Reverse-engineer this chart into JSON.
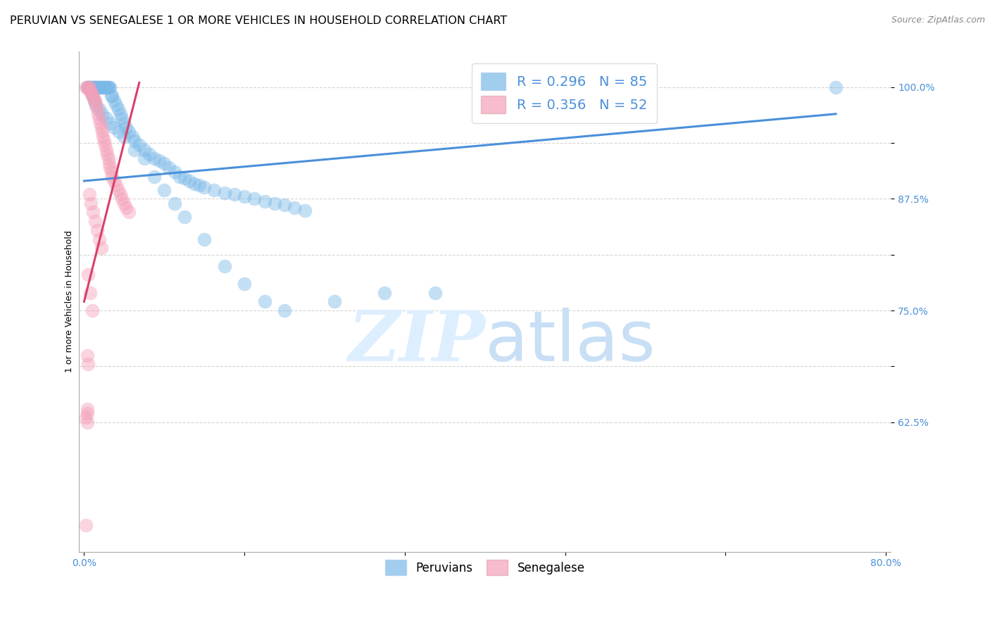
{
  "title": "PERUVIAN VS SENEGALESE 1 OR MORE VEHICLES IN HOUSEHOLD CORRELATION CHART",
  "source": "Source: ZipAtlas.com",
  "ylabel": "1 or more Vehicles in Household",
  "xlim": [
    -0.005,
    0.805
  ],
  "ylim": [
    0.48,
    1.04
  ],
  "x_tick_positions": [
    0.0,
    0.16,
    0.32,
    0.48,
    0.64,
    0.8
  ],
  "x_tick_labels": [
    "0.0%",
    "",
    "",
    "",
    "",
    "80.0%"
  ],
  "y_tick_positions": [
    0.625,
    0.6875,
    0.75,
    0.8125,
    0.875,
    0.9375,
    1.0
  ],
  "y_tick_labels": [
    "62.5%",
    "",
    "75.0%",
    "",
    "87.5%",
    "",
    "100.0%"
  ],
  "legend_line1": "R = 0.296   N = 85",
  "legend_line2": "R = 0.356   N = 52",
  "blue_scatter_x": [
    0.003,
    0.004,
    0.005,
    0.006,
    0.007,
    0.008,
    0.009,
    0.01,
    0.011,
    0.012,
    0.013,
    0.014,
    0.015,
    0.016,
    0.017,
    0.018,
    0.019,
    0.02,
    0.021,
    0.022,
    0.023,
    0.024,
    0.025,
    0.026,
    0.027,
    0.028,
    0.03,
    0.032,
    0.034,
    0.036,
    0.038,
    0.04,
    0.042,
    0.045,
    0.048,
    0.05,
    0.055,
    0.06,
    0.065,
    0.07,
    0.075,
    0.08,
    0.085,
    0.09,
    0.095,
    0.1,
    0.105,
    0.11,
    0.115,
    0.12,
    0.13,
    0.14,
    0.15,
    0.16,
    0.17,
    0.18,
    0.19,
    0.2,
    0.21,
    0.22,
    0.008,
    0.01,
    0.012,
    0.015,
    0.018,
    0.022,
    0.026,
    0.03,
    0.035,
    0.04,
    0.05,
    0.06,
    0.07,
    0.08,
    0.09,
    0.1,
    0.12,
    0.14,
    0.16,
    0.18,
    0.2,
    0.25,
    0.3,
    0.35,
    0.75
  ],
  "blue_scatter_y": [
    1.0,
    1.0,
    1.0,
    1.0,
    1.0,
    1.0,
    1.0,
    1.0,
    1.0,
    1.0,
    1.0,
    1.0,
    1.0,
    1.0,
    1.0,
    1.0,
    1.0,
    1.0,
    1.0,
    1.0,
    1.0,
    1.0,
    1.0,
    1.0,
    0.99,
    0.99,
    0.985,
    0.98,
    0.975,
    0.97,
    0.965,
    0.96,
    0.955,
    0.95,
    0.945,
    0.94,
    0.935,
    0.93,
    0.925,
    0.92,
    0.918,
    0.915,
    0.91,
    0.905,
    0.9,
    0.898,
    0.895,
    0.892,
    0.89,
    0.888,
    0.885,
    0.882,
    0.88,
    0.878,
    0.875,
    0.872,
    0.87,
    0.868,
    0.865,
    0.862,
    0.99,
    0.985,
    0.98,
    0.975,
    0.97,
    0.965,
    0.96,
    0.955,
    0.95,
    0.945,
    0.93,
    0.92,
    0.9,
    0.885,
    0.87,
    0.855,
    0.83,
    0.8,
    0.78,
    0.76,
    0.75,
    0.76,
    0.77,
    0.77,
    1.0
  ],
  "pink_scatter_x": [
    0.002,
    0.003,
    0.004,
    0.005,
    0.006,
    0.007,
    0.008,
    0.009,
    0.01,
    0.011,
    0.012,
    0.013,
    0.014,
    0.015,
    0.016,
    0.017,
    0.018,
    0.019,
    0.02,
    0.021,
    0.022,
    0.023,
    0.024,
    0.025,
    0.026,
    0.027,
    0.028,
    0.03,
    0.032,
    0.034,
    0.036,
    0.038,
    0.04,
    0.042,
    0.045,
    0.005,
    0.007,
    0.009,
    0.011,
    0.013,
    0.015,
    0.017,
    0.004,
    0.006,
    0.008,
    0.003,
    0.004,
    0.003,
    0.003,
    0.002,
    0.003,
    0.002
  ],
  "pink_scatter_y": [
    1.0,
    1.0,
    1.0,
    1.0,
    0.995,
    0.995,
    0.99,
    0.99,
    0.985,
    0.985,
    0.98,
    0.975,
    0.97,
    0.965,
    0.96,
    0.955,
    0.95,
    0.945,
    0.94,
    0.935,
    0.93,
    0.925,
    0.92,
    0.915,
    0.91,
    0.905,
    0.9,
    0.895,
    0.89,
    0.885,
    0.88,
    0.875,
    0.87,
    0.865,
    0.86,
    0.88,
    0.87,
    0.86,
    0.85,
    0.84,
    0.83,
    0.82,
    0.79,
    0.77,
    0.75,
    0.7,
    0.69,
    0.64,
    0.635,
    0.63,
    0.625,
    0.51
  ],
  "blue_line_x": [
    0.0,
    0.75
  ],
  "blue_line_y": [
    0.895,
    0.97
  ],
  "pink_line_x": [
    0.0,
    0.055
  ],
  "pink_line_y": [
    0.76,
    1.005
  ],
  "scatter_size": 200,
  "scatter_alpha": 0.45,
  "blue_color": "#7ab8e8",
  "pink_color": "#f4a0b8",
  "blue_line_color": "#4a90d9",
  "pink_line_color": "#d9406a",
  "grid_color": "#cccccc",
  "bg_color": "#ffffff",
  "watermark_zip": "ZIP",
  "watermark_atlas": "atlas",
  "watermark_color": "#ddeeff",
  "title_fontsize": 11.5,
  "source_fontsize": 9,
  "axis_label_fontsize": 9,
  "tick_fontsize": 10,
  "legend_fontsize": 14
}
